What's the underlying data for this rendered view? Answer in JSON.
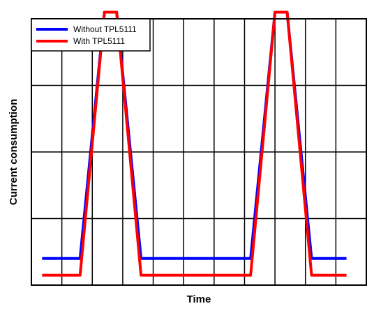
{
  "chart_data": {
    "type": "line",
    "title": "",
    "xlabel": "Time",
    "ylabel": "Current consumption",
    "xlim": [
      0,
      11
    ],
    "ylim": [
      0,
      4
    ],
    "grid": true,
    "x_ticks": [
      0,
      1,
      2,
      3,
      4,
      5,
      6,
      7,
      8,
      9,
      10,
      11
    ],
    "y_ticks": [
      0,
      1,
      2,
      3,
      4
    ],
    "legend_position": "top-left",
    "series": [
      {
        "name": "Without TPL5111",
        "color": "#0000ff",
        "points": [
          [
            0.35,
            0.4
          ],
          [
            1.6,
            0.4
          ],
          [
            2.4,
            4.1
          ],
          [
            2.8,
            4.1
          ],
          [
            3.6,
            0.4
          ],
          [
            7.2,
            0.4
          ],
          [
            8.0,
            4.1
          ],
          [
            8.4,
            4.1
          ],
          [
            9.2,
            0.4
          ],
          [
            10.35,
            0.4
          ]
        ]
      },
      {
        "name": "With TPL5111",
        "color": "#ff0000",
        "points": [
          [
            0.35,
            0.15
          ],
          [
            1.6,
            0.15
          ],
          [
            2.4,
            4.1
          ],
          [
            2.8,
            4.1
          ],
          [
            3.6,
            0.15
          ],
          [
            7.2,
            0.15
          ],
          [
            8.0,
            4.1
          ],
          [
            8.4,
            4.1
          ],
          [
            9.2,
            0.15
          ],
          [
            10.35,
            0.15
          ]
        ]
      }
    ]
  }
}
